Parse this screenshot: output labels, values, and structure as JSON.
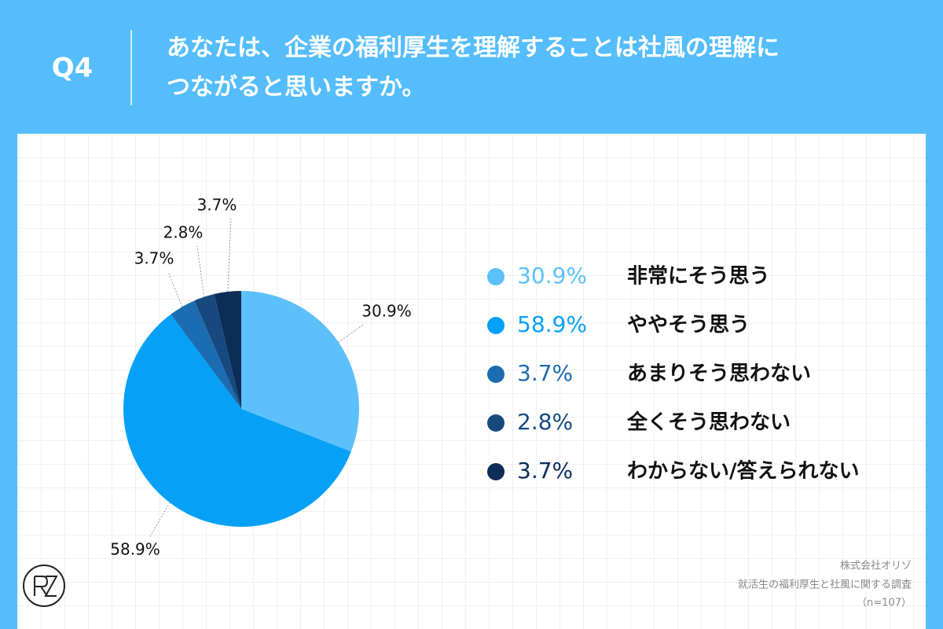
{
  "header": {
    "question": "Q4",
    "title_lines": [
      "あなたは、企業の福利厚生を理解することは社風の理解に",
      "つながると思いますか。"
    ]
  },
  "chart_data": {
    "type": "pie",
    "categories": [
      "非常にそう思う",
      "ややそう思う",
      "あまりそう思わない",
      "全くそう思わない",
      "わからない/答えられない"
    ],
    "values": [
      30.9,
      58.9,
      3.7,
      2.8,
      3.7
    ],
    "value_labels": [
      "30.9%",
      "58.9%",
      "3.7%",
      "2.8%",
      "3.7%"
    ],
    "colors": [
      "#5cc0fb",
      "#06a1f6",
      "#1b6cb0",
      "#17497f",
      "#0b2d58"
    ]
  },
  "footer": {
    "lines": [
      "株式会社オリゾ",
      "就活生の福利厚生と社風に関する調査",
      "（n=107）"
    ]
  }
}
